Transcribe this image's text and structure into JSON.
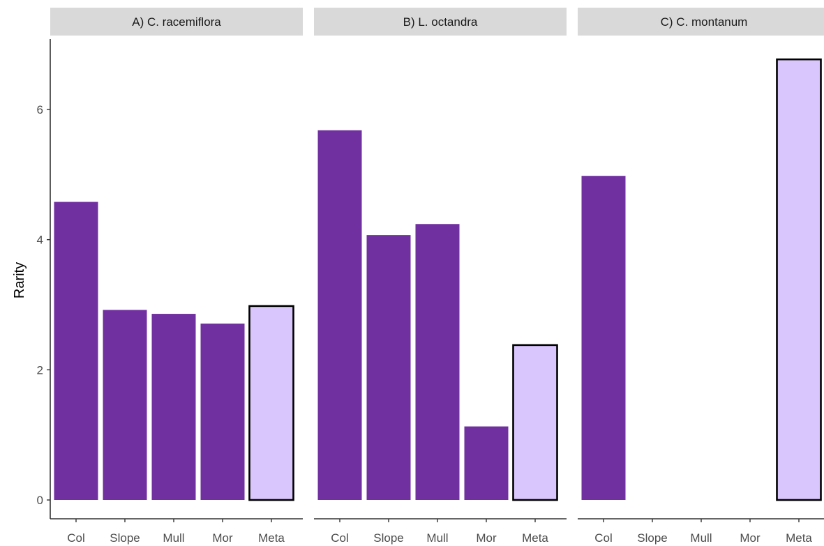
{
  "chart_data": {
    "type": "bar",
    "ylabel": "Rarity",
    "xlabel": "",
    "ylim": [
      0,
      6.8
    ],
    "yticks": [
      0,
      2,
      4,
      6
    ],
    "categories": [
      "Col",
      "Slope",
      "Mull",
      "Mor",
      "Meta"
    ],
    "highlight_category": "Meta",
    "colors": {
      "bar": "#7030a0",
      "highlight": "#d9c6fc",
      "highlight_outline": "#000000",
      "strip": "#d9d9d9"
    },
    "grid": false,
    "legend": "none",
    "panels": [
      {
        "title": "A) C. racemiflora",
        "values": [
          4.58,
          2.92,
          2.86,
          2.71,
          2.98
        ]
      },
      {
        "title": "B) L. octandra",
        "values": [
          5.68,
          4.07,
          4.24,
          1.13,
          2.38
        ]
      },
      {
        "title": "C) C. montanum",
        "values": [
          4.98,
          null,
          null,
          null,
          6.77
        ]
      }
    ]
  }
}
